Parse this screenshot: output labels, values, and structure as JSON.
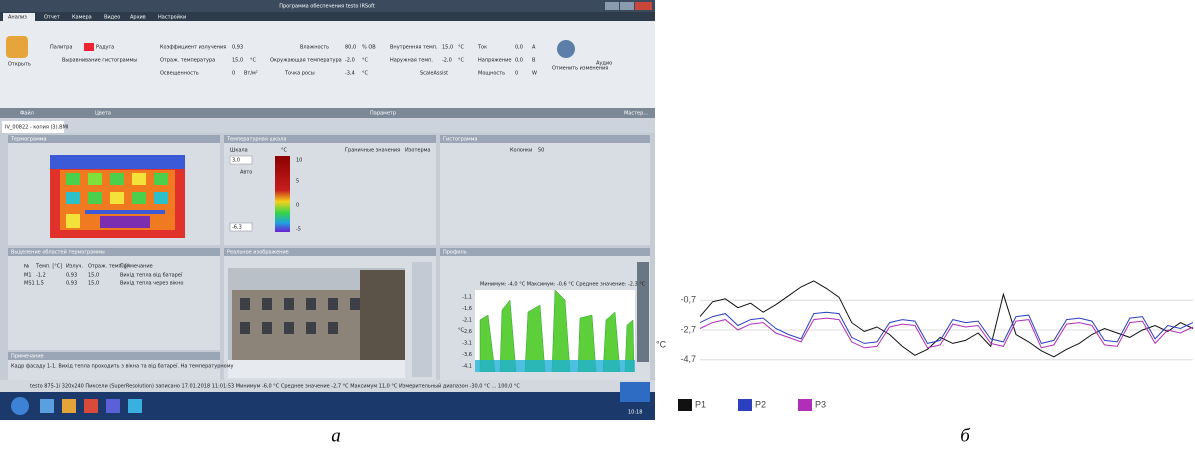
{
  "window": {
    "title": "Программа обеспечения testo IRSoft"
  },
  "tabs": [
    "Анализ",
    "Отчет",
    "Камера",
    "Видео",
    "Архив",
    "Настройки"
  ],
  "ribbon": [
    "Открыть",
    "Палитра",
    "Радуга",
    "Выравнивание гистограммы",
    "Коэффициент излучения",
    "0,93",
    "Отраж. температура",
    "15,0",
    "°C",
    "Освещенность",
    "0",
    "Вт/м²",
    "Влажность",
    "80,0",
    "% ОВ",
    "Окружающая температура",
    "-2,0",
    "°C",
    "Точка росы",
    "-3,4",
    "°C",
    "Внутренняя темп.",
    "15,0",
    "°C",
    "Наружная темп.",
    "-2,0",
    "°C",
    "ScaleAssist",
    "Ток",
    "0,0",
    "A",
    "Напряжение",
    "0,0",
    "В",
    "Мощность",
    "0",
    "W",
    "Отменить изменения",
    "Аудио",
    "Файл",
    "Цвета",
    "Параметр",
    "Мастер..."
  ],
  "document_tab": "IV_00822 - копия (3).BMI",
  "panels": [
    "Термограмма",
    "Температурная шкала",
    "Гистограмма",
    "Выделение областей термограммы",
    "Реальное изображение",
    "Профиль"
  ],
  "scale": {
    "label": "Шкала",
    "unit": "°C",
    "max": "3,0",
    "min": "-6,3",
    "auto": "Авто",
    "ticks": [
      "10",
      "5",
      "0",
      "-5"
    ],
    "limits": "Граничные значения",
    "isotherm": "Изотерма"
  },
  "histogram": {
    "columns": "Колонки",
    "count": "50"
  },
  "table": {
    "header": [
      "№",
      "Темп. [°C]",
      "Излуч.",
      "Отраж. темп. [°",
      "Примечание"
    ],
    "rows": [
      [
        "M1",
        "-1,2",
        "0,93",
        "15,0",
        "Вихід тепла від батареї"
      ],
      [
        "MS1",
        "1,5",
        "0,93",
        "15,0",
        "Вихід тепла через вікно"
      ]
    ]
  },
  "notes": {
    "title": "Примечание",
    "text": "Кадр фасаду 1-1. Вихід тепла проходить з вікна та від батареї. На температурному"
  },
  "profile": {
    "summary": "Минимум: -4,0 °C Максимум: -0,6 °C Среднее значение: -2,3 °C",
    "yticks": [
      "-1,1",
      "-1,6",
      "-2,1",
      "-2,6",
      "-3,1",
      "-3,6",
      "-4,1"
    ],
    "ylabel": "°C"
  },
  "status": "testo 875-1i 320x240 Пиксели (SuperResolution) записано 17.01.2018 11:01:53 Минимум -6,0 °C Среднее значение -2,7 °C Максимум 11,0 °C Измерительный диапазон -30,0 °C ... 100,0 °C",
  "clock": "10:18",
  "captions": [
    "а",
    "б"
  ],
  "chart_data": {
    "type": "line",
    "ylabel": "°C",
    "ylim": [
      -6.4,
      1.0
    ],
    "yticks": [
      {
        "value": -0.7,
        "label": "-0,7"
      },
      {
        "value": -2.7,
        "label": "-2,7"
      },
      {
        "value": -4.7,
        "label": "-4,7"
      }
    ],
    "grid": true,
    "series": [
      {
        "name": "P1",
        "color": "#111111",
        "values": [
          -1.8,
          -0.8,
          -0.6,
          -1.2,
          -0.9,
          -1.5,
          -1.0,
          -0.4,
          0.2,
          0.6,
          0.1,
          -0.5,
          -2.2,
          -2.8,
          -2.5,
          -3.0,
          -3.8,
          -4.4,
          -4.0,
          -3.2,
          -3.6,
          -3.4,
          -2.9,
          -3.8,
          -0.3,
          -3.0,
          -3.5,
          -4.1,
          -4.5,
          -4.0,
          -3.6,
          -3.0,
          -2.6,
          -2.9,
          -3.2,
          -2.7,
          -2.4,
          -2.8,
          -2.2,
          -2.6
        ]
      },
      {
        "name": "P2",
        "color": "#2b3fbf",
        "values": [
          -2.2,
          -1.8,
          -1.6,
          -2.4,
          -2.0,
          -1.9,
          -2.6,
          -3.0,
          -3.3,
          -1.6,
          -1.5,
          -1.6,
          -3.2,
          -3.6,
          -3.5,
          -2.2,
          -2.0,
          -2.1,
          -3.6,
          -3.4,
          -2.0,
          -2.2,
          -2.1,
          -3.3,
          -3.5,
          -1.8,
          -1.7,
          -3.6,
          -3.4,
          -2.0,
          -1.9,
          -2.1,
          -3.4,
          -3.5,
          -1.9,
          -1.8,
          -3.3,
          -2.4,
          -2.6,
          -2.2
        ]
      },
      {
        "name": "P3",
        "color": "#b12fb8",
        "values": [
          -2.6,
          -2.2,
          -2.0,
          -2.7,
          -2.3,
          -2.2,
          -2.9,
          -3.2,
          -3.5,
          -2.0,
          -1.9,
          -2.0,
          -3.5,
          -3.9,
          -3.8,
          -2.5,
          -2.3,
          -2.4,
          -3.9,
          -3.7,
          -2.3,
          -2.5,
          -2.4,
          -3.6,
          -3.8,
          -2.1,
          -2.0,
          -3.9,
          -3.7,
          -2.3,
          -2.2,
          -2.4,
          -3.7,
          -3.8,
          -2.2,
          -2.1,
          -3.6,
          -2.7,
          -2.9,
          -2.5
        ]
      }
    ]
  }
}
